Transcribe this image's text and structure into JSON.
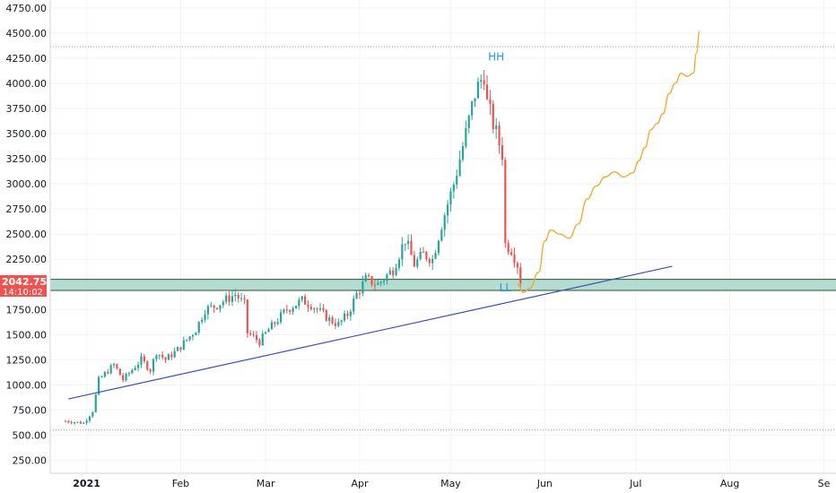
{
  "chart_data": {
    "type": "candlestick",
    "y_axis": {
      "position": "left",
      "ticks": [
        "4750.00",
        "4500.00",
        "4250.00",
        "4000.00",
        "3750.00",
        "3500.00",
        "3250.00",
        "3000.00",
        "2750.00",
        "2500.00",
        "2250.00",
        "2000.00",
        "1750.00",
        "1500.00",
        "1250.00",
        "1000.00",
        "750.00",
        "500.00",
        "250.00"
      ],
      "tick_values": [
        4750,
        4500,
        4250,
        4000,
        3750,
        3500,
        3250,
        3000,
        2750,
        2500,
        2250,
        2000,
        1750,
        1500,
        1250,
        1000,
        750,
        500,
        250
      ],
      "range": [
        120,
        4830
      ]
    },
    "x_axis": {
      "ticks": [
        "2021",
        "Feb",
        "Mar",
        "Apr",
        "May",
        "Jun",
        "Jul",
        "Aug",
        "Se"
      ],
      "tick_values": [
        "2021-01-01",
        "2021-02-01",
        "2021-03-01",
        "2021-04-01",
        "2021-05-01",
        "2021-06-01",
        "2021-07-01",
        "2021-08-01",
        "2021-09-01"
      ],
      "range": [
        "2020-12-20",
        "2021-09-05"
      ]
    },
    "price_label": {
      "value": "2042.75",
      "countdown": "14:10:02"
    },
    "annotations": [
      {
        "text": "HH",
        "x": "2021-05-16",
        "y": 4230
      },
      {
        "text": "LL",
        "x": "2021-05-19",
        "y": 1930
      }
    ],
    "support_zone": {
      "y_low": 1940,
      "y_high": 2050
    },
    "dotted_levels": [
      4365,
      550
    ],
    "trendline": {
      "from": {
        "x": "2020-12-26",
        "y": 860
      },
      "to": {
        "x": "2021-07-13",
        "y": 2180
      }
    },
    "projection_path": [
      [
        "2021-05-23",
        2000
      ],
      [
        "2021-05-25",
        1920
      ],
      [
        "2021-05-27",
        1960
      ],
      [
        "2021-05-30",
        2120
      ],
      [
        "2021-06-01",
        2430
      ],
      [
        "2021-06-03",
        2540
      ],
      [
        "2021-06-06",
        2500
      ],
      [
        "2021-06-09",
        2460
      ],
      [
        "2021-06-12",
        2600
      ],
      [
        "2021-06-15",
        2850
      ],
      [
        "2021-06-18",
        2980
      ],
      [
        "2021-06-21",
        3070
      ],
      [
        "2021-06-24",
        3120
      ],
      [
        "2021-06-27",
        3070
      ],
      [
        "2021-06-30",
        3110
      ],
      [
        "2021-07-02",
        3230
      ],
      [
        "2021-07-04",
        3360
      ],
      [
        "2021-07-06",
        3540
      ],
      [
        "2021-07-08",
        3600
      ],
      [
        "2021-07-10",
        3700
      ],
      [
        "2021-07-12",
        3900
      ],
      [
        "2021-07-14",
        4000
      ],
      [
        "2021-07-16",
        4100
      ],
      [
        "2021-07-18",
        4070
      ],
      [
        "2021-07-20",
        4100
      ],
      [
        "2021-07-21",
        4300
      ],
      [
        "2021-07-22",
        4520
      ]
    ],
    "colors": {
      "up": "#26a69a",
      "down": "#ef5350",
      "zone_fill": "#9ccfc4",
      "zone_border": "#1b5e20",
      "trendline": "#3f51b5",
      "projection": "#f5a623",
      "annotation": "#2196f3",
      "price_label": "#ef5350"
    },
    "ohlc_anchors": [
      [
        "2020-12-25",
        640
      ],
      [
        "2020-12-31",
        620
      ],
      [
        "2021-01-03",
        740
      ],
      [
        "2021-01-05",
        1050
      ],
      [
        "2021-01-10",
        1200
      ],
      [
        "2021-01-13",
        1050
      ],
      [
        "2021-01-19",
        1250
      ],
      [
        "2021-01-22",
        1150
      ],
      [
        "2021-01-24",
        1330
      ],
      [
        "2021-01-27",
        1250
      ],
      [
        "2021-01-31",
        1350
      ],
      [
        "2021-02-06",
        1550
      ],
      [
        "2021-02-09",
        1750
      ],
      [
        "2021-02-12",
        1780
      ],
      [
        "2021-02-19",
        1900
      ],
      [
        "2021-02-22",
        1800
      ],
      [
        "2021-02-23",
        1520
      ],
      [
        "2021-02-27",
        1430
      ],
      [
        "2021-03-02",
        1550
      ],
      [
        "2021-03-08",
        1750
      ],
      [
        "2021-03-13",
        1840
      ],
      [
        "2021-03-16",
        1800
      ],
      [
        "2021-03-22",
        1650
      ],
      [
        "2021-03-25",
        1600
      ],
      [
        "2021-03-28",
        1700
      ],
      [
        "2021-03-31",
        1900
      ],
      [
        "2021-04-03",
        2050
      ],
      [
        "2021-04-07",
        2000
      ],
      [
        "2021-04-12",
        2150
      ],
      [
        "2021-04-16",
        2450
      ],
      [
        "2021-04-19",
        2200
      ],
      [
        "2021-04-22",
        2300
      ],
      [
        "2021-04-25",
        2250
      ],
      [
        "2021-04-28",
        2600
      ],
      [
        "2021-05-02",
        3000
      ],
      [
        "2021-05-06",
        3500
      ],
      [
        "2021-05-09",
        3900
      ],
      [
        "2021-05-12",
        4100
      ],
      [
        "2021-05-13",
        3800
      ],
      [
        "2021-05-16",
        3500
      ],
      [
        "2021-05-18",
        3300
      ],
      [
        "2021-05-19",
        2400
      ],
      [
        "2021-05-21",
        2350
      ],
      [
        "2021-05-23",
        2200
      ],
      [
        "2021-05-24",
        2040
      ]
    ]
  }
}
